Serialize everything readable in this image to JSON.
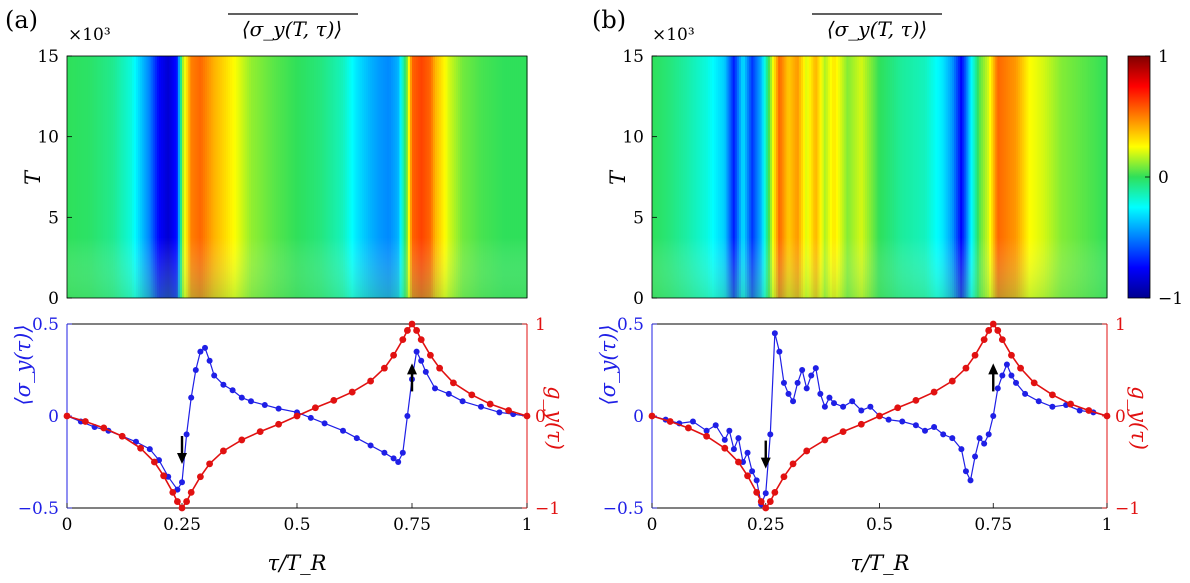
{
  "figure": {
    "panel_labels": [
      "(a)",
      "(b)"
    ],
    "heatmap_title": "⟨σ_y(T, τ)⟩",
    "heatmap_ylabel": "T",
    "heatmap_multiplier": "×10³",
    "bottom_left_ylabel": "⟨σ_y(τ)⟩",
    "bottom_right_ylabel": "g_y(τ)",
    "xlabel": "τ/T_R",
    "colors": {
      "blue": "#1f1fe6",
      "red": "#e11111",
      "arrow": "#000000",
      "axis": "#000000"
    }
  },
  "chart_data": [
    {
      "panel": "(a)",
      "type": "heatmap",
      "title": "⟨σ_y(T, τ)⟩",
      "ylabel": "T",
      "ylim": [
        0,
        15000
      ],
      "yticks": [
        0,
        5,
        10,
        15
      ],
      "ymultiplier": "×10³",
      "xlim": [
        0,
        1
      ],
      "color_range": [
        -1,
        1
      ],
      "column_profile_x": [
        0,
        0.05,
        0.1,
        0.14,
        0.18,
        0.2,
        0.22,
        0.24,
        0.25,
        0.27,
        0.29,
        0.3,
        0.32,
        0.35,
        0.4,
        0.45,
        0.5,
        0.55,
        0.6,
        0.63,
        0.66,
        0.68,
        0.7,
        0.72,
        0.74,
        0.75,
        0.77,
        0.79,
        0.8,
        0.83,
        0.86,
        0.9,
        0.95,
        1.0
      ],
      "column_profile_value": [
        0.0,
        -0.02,
        -0.08,
        -0.2,
        -0.5,
        -0.75,
        -0.85,
        -0.7,
        0.1,
        0.5,
        0.55,
        0.5,
        0.4,
        0.3,
        0.12,
        0.05,
        0.0,
        -0.05,
        -0.15,
        -0.3,
        -0.4,
        -0.45,
        -0.48,
        -0.4,
        0.1,
        0.55,
        0.62,
        0.55,
        0.4,
        0.2,
        0.08,
        0.03,
        0.0,
        0.0
      ]
    },
    {
      "panel": "(b)",
      "type": "heatmap",
      "title": "⟨σ_y(T, τ)⟩",
      "ylabel": "T",
      "ylim": [
        0,
        15000
      ],
      "yticks": [
        0,
        5,
        10,
        15
      ],
      "ymultiplier": "×10³",
      "xlim": [
        0,
        1
      ],
      "color_range": [
        -1,
        1
      ],
      "colorbar_ticks": [
        -1,
        0,
        1
      ],
      "column_profile_x": [
        0,
        0.04,
        0.08,
        0.12,
        0.16,
        0.18,
        0.2,
        0.22,
        0.24,
        0.26,
        0.28,
        0.3,
        0.32,
        0.34,
        0.36,
        0.38,
        0.4,
        0.43,
        0.46,
        0.5,
        0.55,
        0.6,
        0.64,
        0.66,
        0.68,
        0.69,
        0.7,
        0.72,
        0.74,
        0.76,
        0.78,
        0.8,
        0.83,
        0.86,
        0.9,
        0.95,
        1.0
      ],
      "column_profile_value": [
        0.0,
        -0.05,
        -0.12,
        -0.2,
        -0.35,
        -0.7,
        -0.3,
        -0.65,
        -0.4,
        0.1,
        0.55,
        0.35,
        0.45,
        0.2,
        0.4,
        0.15,
        0.3,
        0.1,
        0.2,
        0.0,
        -0.1,
        -0.15,
        -0.3,
        -0.45,
        -0.75,
        -0.55,
        -0.3,
        0.05,
        0.2,
        0.55,
        0.5,
        0.45,
        0.25,
        0.2,
        0.1,
        0.05,
        0.0
      ]
    },
    {
      "panel": "(a)",
      "type": "line",
      "xlabel": "τ/T_R",
      "xlim": [
        0,
        1
      ],
      "xticks": [
        0,
        0.25,
        0.5,
        0.75,
        1
      ],
      "ylim_left": [
        -0.5,
        0.5
      ],
      "yticks_left": [
        -0.5,
        0,
        0.5
      ],
      "ylim_right": [
        -1,
        1
      ],
      "yticks_right": [
        -1,
        0,
        1
      ],
      "series": [
        {
          "name": "⟨σ_y(τ)⟩",
          "axis": "left",
          "color": "#1f1fe6",
          "x": [
            0,
            0.03,
            0.06,
            0.09,
            0.12,
            0.15,
            0.18,
            0.2,
            0.22,
            0.24,
            0.25,
            0.26,
            0.27,
            0.28,
            0.29,
            0.3,
            0.31,
            0.32,
            0.34,
            0.36,
            0.38,
            0.4,
            0.43,
            0.46,
            0.5,
            0.53,
            0.56,
            0.6,
            0.63,
            0.66,
            0.69,
            0.71,
            0.72,
            0.73,
            0.74,
            0.75,
            0.76,
            0.77,
            0.78,
            0.8,
            0.83,
            0.86,
            0.9,
            0.94,
            0.97,
            1.0
          ],
          "y": [
            0,
            -0.03,
            -0.06,
            -0.08,
            -0.11,
            -0.14,
            -0.18,
            -0.24,
            -0.33,
            -0.4,
            -0.36,
            -0.1,
            0.1,
            0.25,
            0.35,
            0.37,
            0.3,
            0.22,
            0.17,
            0.14,
            0.1,
            0.08,
            0.06,
            0.04,
            0.02,
            -0.01,
            -0.04,
            -0.08,
            -0.12,
            -0.16,
            -0.2,
            -0.23,
            -0.25,
            -0.2,
            0.0,
            0.2,
            0.35,
            0.3,
            0.24,
            0.15,
            0.12,
            0.08,
            0.05,
            0.02,
            0.01,
            0.0
          ]
        },
        {
          "name": "g_y(τ)",
          "axis": "right",
          "color": "#e11111",
          "x": [
            0,
            0.04,
            0.08,
            0.12,
            0.16,
            0.19,
            0.21,
            0.23,
            0.24,
            0.25,
            0.26,
            0.27,
            0.29,
            0.31,
            0.34,
            0.38,
            0.42,
            0.46,
            0.5,
            0.54,
            0.58,
            0.62,
            0.66,
            0.69,
            0.71,
            0.73,
            0.74,
            0.75,
            0.76,
            0.77,
            0.79,
            0.81,
            0.84,
            0.88,
            0.92,
            0.96,
            1.0
          ],
          "y": [
            0,
            -0.06,
            -0.13,
            -0.22,
            -0.35,
            -0.5,
            -0.65,
            -0.83,
            -0.93,
            -1.0,
            -0.93,
            -0.83,
            -0.66,
            -0.52,
            -0.38,
            -0.26,
            -0.17,
            -0.09,
            0.0,
            0.09,
            0.17,
            0.26,
            0.38,
            0.52,
            0.66,
            0.83,
            0.93,
            1.0,
            0.93,
            0.83,
            0.66,
            0.52,
            0.36,
            0.23,
            0.13,
            0.06,
            0.0
          ]
        }
      ],
      "annotations": [
        {
          "type": "arrow",
          "direction": "down",
          "x": 0.25,
          "y_right": -0.5
        },
        {
          "type": "arrow",
          "direction": "up",
          "x": 0.75,
          "y_right": 0.55
        }
      ]
    },
    {
      "panel": "(b)",
      "type": "line",
      "xlabel": "τ/T_R",
      "xlim": [
        0,
        1
      ],
      "xticks": [
        0,
        0.25,
        0.5,
        0.75,
        1
      ],
      "ylim_left": [
        -0.5,
        0.5
      ],
      "yticks_left": [
        -0.5,
        0,
        0.5
      ],
      "ylim_right": [
        -1,
        1
      ],
      "yticks_right": [
        -1,
        0,
        1
      ],
      "series": [
        {
          "name": "⟨σ_y(τ)⟩",
          "axis": "left",
          "color": "#1f1fe6",
          "x": [
            0,
            0.03,
            0.06,
            0.09,
            0.12,
            0.14,
            0.16,
            0.17,
            0.18,
            0.19,
            0.2,
            0.21,
            0.22,
            0.23,
            0.24,
            0.25,
            0.26,
            0.27,
            0.28,
            0.29,
            0.3,
            0.31,
            0.32,
            0.33,
            0.34,
            0.35,
            0.36,
            0.37,
            0.38,
            0.39,
            0.4,
            0.42,
            0.44,
            0.46,
            0.48,
            0.5,
            0.52,
            0.55,
            0.58,
            0.6,
            0.62,
            0.64,
            0.66,
            0.68,
            0.69,
            0.7,
            0.71,
            0.72,
            0.73,
            0.74,
            0.75,
            0.76,
            0.77,
            0.78,
            0.79,
            0.8,
            0.82,
            0.85,
            0.88,
            0.91,
            0.94,
            0.97,
            1.0
          ],
          "y": [
            0,
            -0.02,
            -0.04,
            -0.03,
            -0.08,
            -0.05,
            -0.13,
            -0.08,
            -0.18,
            -0.12,
            -0.25,
            -0.2,
            -0.3,
            -0.35,
            -0.48,
            -0.42,
            -0.1,
            0.45,
            0.35,
            0.18,
            0.12,
            0.08,
            0.18,
            0.25,
            0.15,
            0.22,
            0.26,
            0.12,
            0.05,
            0.1,
            0.07,
            0.05,
            0.08,
            0.03,
            0.05,
            0.0,
            -0.02,
            -0.03,
            -0.05,
            -0.08,
            -0.06,
            -0.1,
            -0.12,
            -0.18,
            -0.3,
            -0.35,
            -0.22,
            -0.12,
            -0.15,
            -0.1,
            0.0,
            0.15,
            0.22,
            0.28,
            0.22,
            0.18,
            0.12,
            0.08,
            0.05,
            0.06,
            0.03,
            0.02,
            0.0
          ]
        },
        {
          "name": "g_y(τ)",
          "axis": "right",
          "color": "#e11111",
          "x": [
            0,
            0.04,
            0.08,
            0.12,
            0.16,
            0.19,
            0.21,
            0.23,
            0.24,
            0.25,
            0.26,
            0.27,
            0.29,
            0.31,
            0.34,
            0.38,
            0.42,
            0.46,
            0.5,
            0.54,
            0.58,
            0.62,
            0.66,
            0.69,
            0.71,
            0.73,
            0.74,
            0.75,
            0.76,
            0.77,
            0.79,
            0.81,
            0.84,
            0.88,
            0.92,
            0.96,
            1.0
          ],
          "y": [
            0,
            -0.06,
            -0.13,
            -0.22,
            -0.35,
            -0.5,
            -0.65,
            -0.83,
            -0.93,
            -1.0,
            -0.93,
            -0.83,
            -0.66,
            -0.52,
            -0.38,
            -0.26,
            -0.17,
            -0.09,
            0.0,
            0.09,
            0.17,
            0.26,
            0.38,
            0.52,
            0.66,
            0.83,
            0.93,
            1.0,
            0.93,
            0.83,
            0.66,
            0.52,
            0.36,
            0.23,
            0.13,
            0.06,
            0.0
          ]
        }
      ],
      "annotations": [
        {
          "type": "arrow",
          "direction": "down",
          "x": 0.25,
          "y_right": -0.55
        },
        {
          "type": "arrow",
          "direction": "up",
          "x": 0.75,
          "y_right": 0.55
        }
      ]
    }
  ]
}
